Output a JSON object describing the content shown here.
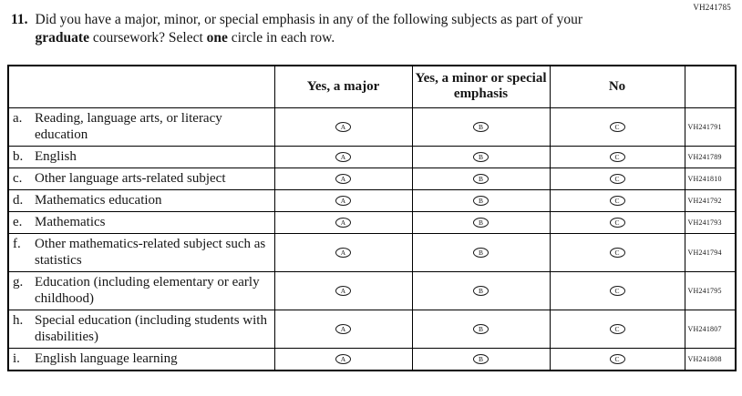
{
  "page": {
    "top_right_code": "VH241785"
  },
  "question": {
    "number": "11.",
    "seg1": "Did you have a major, minor, or special emphasis in any of the following subjects as part of your ",
    "bold1": "graduate",
    "seg2": " coursework? Select ",
    "bold2": "one",
    "seg3": " circle in each row."
  },
  "table": {
    "headers": {
      "subject": "",
      "major": "Yes, a major",
      "minor": "Yes, a minor or special emphasis",
      "no": "No",
      "code": ""
    },
    "options": [
      "A",
      "B",
      "C"
    ],
    "rows": [
      {
        "letter": "a.",
        "label": "Reading, language arts, or literacy education",
        "code": "VH241791"
      },
      {
        "letter": "b.",
        "label": "English",
        "code": "VH241789"
      },
      {
        "letter": "c.",
        "label": "Other language arts-related subject",
        "code": "VH241810"
      },
      {
        "letter": "d.",
        "label": "Mathematics education",
        "code": "VH241792"
      },
      {
        "letter": "e.",
        "label": "Mathematics",
        "code": "VH241793"
      },
      {
        "letter": "f.",
        "label": "Other mathematics-related subject such as statistics",
        "code": "VH241794"
      },
      {
        "letter": "g.",
        "label": "Education (including elementary or early childhood)",
        "code": "VH241795"
      },
      {
        "letter": "h.",
        "label": "Special education (including students with disabilities)",
        "code": "VH241807"
      },
      {
        "letter": "i.",
        "label": "English language learning",
        "code": "VH241808"
      }
    ]
  }
}
